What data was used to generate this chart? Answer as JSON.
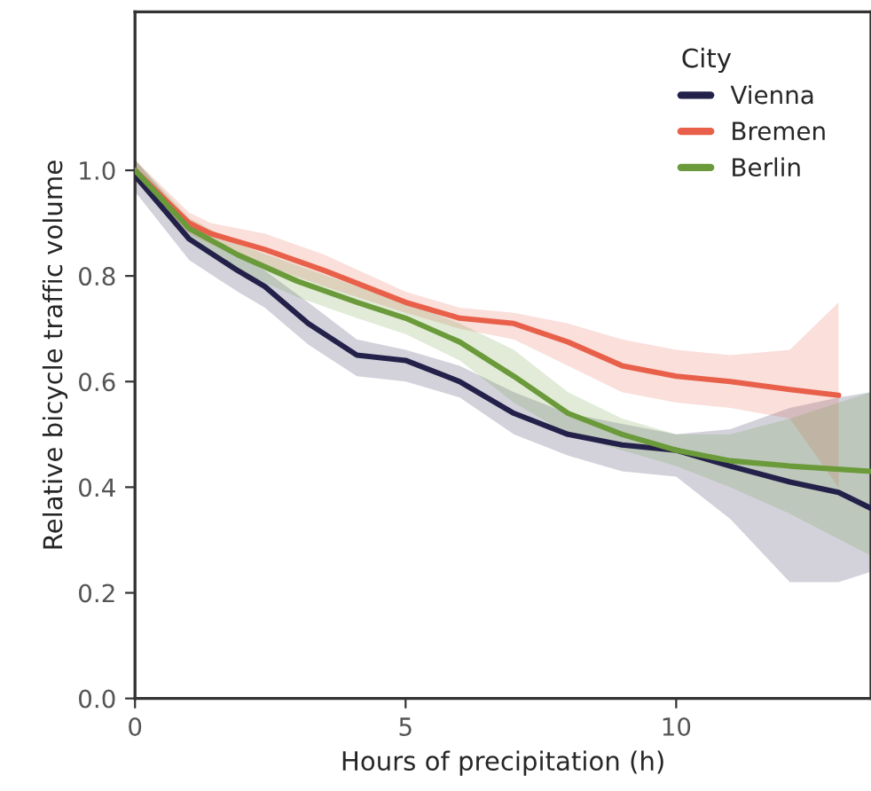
{
  "chart_data": {
    "type": "line",
    "xlabel": "Hours of precipitation (h)",
    "ylabel": "Relative bicycle traffic volume",
    "legend_title": "City",
    "legend": "top right",
    "grid": false,
    "marker": "none",
    "line_style": "solid",
    "xlim": [
      0,
      13.6
    ],
    "ylim": [
      0,
      1.3
    ],
    "xticks": [
      0,
      5,
      10
    ],
    "yticks": [
      {
        "value": 0,
        "label": "0.0"
      },
      0.2,
      0.4,
      0.6,
      0.8,
      {
        "value": 1,
        "label": "1.0"
      }
    ],
    "series": [
      {
        "name": "Vienna",
        "color": "#23204a",
        "x": [
          0,
          1,
          1.9,
          2.4,
          3.2,
          4.1,
          5,
          6,
          7,
          8,
          9,
          10,
          11,
          12.1,
          13,
          13.6
        ],
        "values": [
          0.99,
          0.87,
          0.81,
          0.78,
          0.71,
          0.65,
          0.64,
          0.6,
          0.54,
          0.5,
          0.48,
          0.47,
          0.44,
          0.41,
          0.39,
          0.36
        ],
        "lower": [
          0.96,
          0.83,
          0.77,
          0.74,
          0.67,
          0.61,
          0.6,
          0.57,
          0.5,
          0.46,
          0.43,
          0.42,
          0.34,
          0.22,
          0.22,
          0.24
        ],
        "upper": [
          1.02,
          0.9,
          0.84,
          0.81,
          0.75,
          0.68,
          0.66,
          0.63,
          0.58,
          0.54,
          0.52,
          0.5,
          0.51,
          0.55,
          0.57,
          0.58
        ]
      },
      {
        "name": "Bremen",
        "color": "#e8604a",
        "x": [
          0,
          1,
          1.4,
          2.4,
          3.5,
          5,
          6,
          7,
          8,
          9,
          10,
          11,
          12.1,
          13
        ],
        "values": [
          1.0,
          0.9,
          0.88,
          0.85,
          0.81,
          0.75,
          0.72,
          0.71,
          0.675,
          0.63,
          0.61,
          0.6,
          0.585,
          0.574
        ],
        "lower": [
          0.98,
          0.88,
          0.86,
          0.82,
          0.78,
          0.73,
          0.7,
          0.68,
          0.63,
          0.58,
          0.56,
          0.55,
          0.53,
          0.4
        ],
        "upper": [
          1.02,
          0.92,
          0.9,
          0.88,
          0.84,
          0.77,
          0.74,
          0.73,
          0.71,
          0.68,
          0.66,
          0.65,
          0.66,
          0.75
        ]
      },
      {
        "name": "Berlin",
        "color": "#6a9a3a",
        "x": [
          0,
          1,
          1.9,
          3,
          4.1,
          5,
          6,
          7,
          8,
          9,
          10,
          11,
          12.1,
          13.6
        ],
        "values": [
          1.0,
          0.89,
          0.84,
          0.79,
          0.75,
          0.72,
          0.675,
          0.61,
          0.54,
          0.5,
          0.47,
          0.45,
          0.44,
          0.43
        ],
        "lower": [
          0.98,
          0.87,
          0.81,
          0.76,
          0.72,
          0.69,
          0.64,
          0.56,
          0.5,
          0.47,
          0.44,
          0.4,
          0.35,
          0.27
        ],
        "upper": [
          1.02,
          0.91,
          0.86,
          0.82,
          0.78,
          0.75,
          0.71,
          0.66,
          0.58,
          0.53,
          0.5,
          0.5,
          0.53,
          0.58
        ]
      }
    ]
  }
}
